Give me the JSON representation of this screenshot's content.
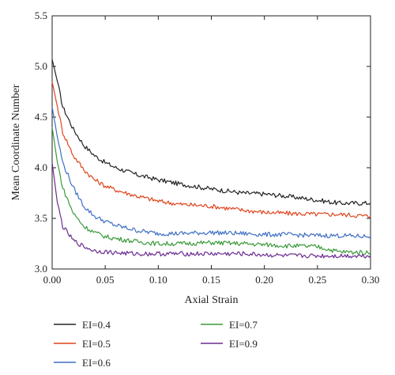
{
  "chart_data": {
    "type": "line",
    "title": "",
    "xlabel": "Axial Strain",
    "ylabel": "Mean Coordinate Number",
    "xlim": [
      0.0,
      0.3
    ],
    "ylim": [
      3.0,
      5.5
    ],
    "x_ticks": [
      "0.00",
      "0.05",
      "0.10",
      "0.15",
      "0.20",
      "0.25",
      "0.30"
    ],
    "y_ticks": [
      "3.0",
      "3.5",
      "4.0",
      "4.5",
      "5.0",
      "5.5"
    ],
    "grid": false,
    "legend_position": "bottom",
    "series": [
      {
        "name": "EI=0.4",
        "color": "#222222",
        "x": [
          0.0,
          0.005,
          0.01,
          0.02,
          0.03,
          0.04,
          0.05,
          0.06,
          0.08,
          0.1,
          0.12,
          0.15,
          0.18,
          0.2,
          0.22,
          0.25,
          0.27,
          0.3
        ],
        "y": [
          5.07,
          4.85,
          4.6,
          4.38,
          4.22,
          4.12,
          4.05,
          4.0,
          3.93,
          3.88,
          3.84,
          3.79,
          3.75,
          3.74,
          3.72,
          3.68,
          3.65,
          3.65
        ]
      },
      {
        "name": "EI=0.5",
        "color": "#e0441c",
        "x": [
          0.0,
          0.005,
          0.01,
          0.02,
          0.03,
          0.04,
          0.05,
          0.06,
          0.08,
          0.1,
          0.12,
          0.15,
          0.18,
          0.2,
          0.22,
          0.25,
          0.27,
          0.3
        ],
        "y": [
          4.85,
          4.6,
          4.35,
          4.12,
          3.98,
          3.88,
          3.82,
          3.78,
          3.72,
          3.67,
          3.64,
          3.62,
          3.58,
          3.56,
          3.55,
          3.54,
          3.54,
          3.52
        ]
      },
      {
        "name": "EI=0.6",
        "color": "#3f6fc4",
        "x": [
          0.0,
          0.005,
          0.01,
          0.02,
          0.03,
          0.04,
          0.05,
          0.06,
          0.08,
          0.1,
          0.12,
          0.15,
          0.18,
          0.2,
          0.22,
          0.25,
          0.27,
          0.3
        ],
        "y": [
          4.6,
          4.3,
          4.05,
          3.8,
          3.62,
          3.52,
          3.47,
          3.43,
          3.38,
          3.35,
          3.35,
          3.36,
          3.35,
          3.34,
          3.34,
          3.33,
          3.33,
          3.32
        ]
      },
      {
        "name": "EI=0.7",
        "color": "#3a9a3a",
        "x": [
          0.0,
          0.005,
          0.01,
          0.02,
          0.03,
          0.04,
          0.05,
          0.06,
          0.08,
          0.1,
          0.12,
          0.15,
          0.18,
          0.2,
          0.22,
          0.25,
          0.27,
          0.3
        ],
        "y": [
          4.4,
          4.05,
          3.8,
          3.55,
          3.42,
          3.36,
          3.32,
          3.3,
          3.27,
          3.25,
          3.25,
          3.26,
          3.25,
          3.24,
          3.23,
          3.22,
          3.17,
          3.16
        ]
      },
      {
        "name": "EI=0.9",
        "color": "#6b2c91",
        "x": [
          0.0,
          0.005,
          0.01,
          0.02,
          0.03,
          0.04,
          0.05,
          0.06,
          0.08,
          0.1,
          0.12,
          0.15,
          0.18,
          0.2,
          0.22,
          0.25,
          0.27,
          0.3
        ],
        "y": [
          4.05,
          3.65,
          3.42,
          3.28,
          3.22,
          3.18,
          3.17,
          3.16,
          3.15,
          3.15,
          3.15,
          3.15,
          3.15,
          3.14,
          3.13,
          3.13,
          3.13,
          3.13
        ]
      }
    ]
  }
}
